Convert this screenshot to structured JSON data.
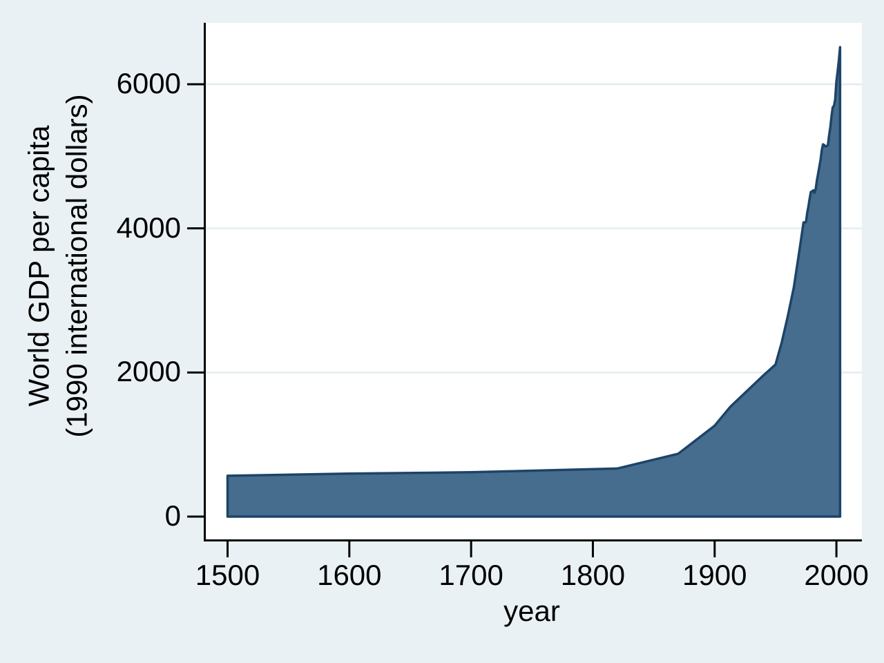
{
  "figure": {
    "background_color": "#eaf1f4",
    "plot_background_color": "#ffffff",
    "gridline_color": "#e3edf0",
    "axis_color": "#000000",
    "text_color": "#000000",
    "area_fill_color": "#476d8e",
    "area_border_color": "#1d4468"
  },
  "chart_data": {
    "type": "area",
    "title": "",
    "xlabel": "year",
    "ylabel_line1": "World GDP per capita",
    "ylabel_line2": "(1990 international dollars)",
    "x_ticks": [
      1500,
      1600,
      1700,
      1800,
      1900,
      2000
    ],
    "y_ticks": [
      0,
      2000,
      4000,
      6000
    ],
    "y_gridlines": [
      2000,
      4000,
      6000
    ],
    "xlim": [
      1500,
      2003
    ],
    "ylim": [
      0,
      6854
    ],
    "grid": "horizontal-only",
    "legend": "none",
    "series": [
      {
        "name": "World GDP per capita (1990 international dollars)",
        "x": [
          1500,
          1600,
          1700,
          1820,
          1870,
          1900,
          1913,
          1940,
          1950,
          1955,
          1960,
          1965,
          1970,
          1973,
          1974,
          1975,
          1976,
          1977,
          1978,
          1979,
          1980,
          1981,
          1982,
          1983,
          1984,
          1985,
          1986,
          1987,
          1988,
          1989,
          1990,
          1991,
          1992,
          1993,
          1994,
          1995,
          1996,
          1997,
          1998,
          1999,
          2000,
          2001,
          2002,
          2003
        ],
        "values": [
          566,
          596,
          615,
          667,
          871,
          1261,
          1526,
          1958,
          2111,
          2412,
          2777,
          3180,
          3736,
          4083,
          4079,
          4091,
          4212,
          4301,
          4410,
          4506,
          4512,
          4528,
          4494,
          4546,
          4670,
          4764,
          4857,
          4953,
          5085,
          5166,
          5157,
          5136,
          5141,
          5156,
          5290,
          5404,
          5555,
          5680,
          5702,
          5790,
          6038,
          6180,
          6330,
          6516
        ]
      }
    ]
  }
}
